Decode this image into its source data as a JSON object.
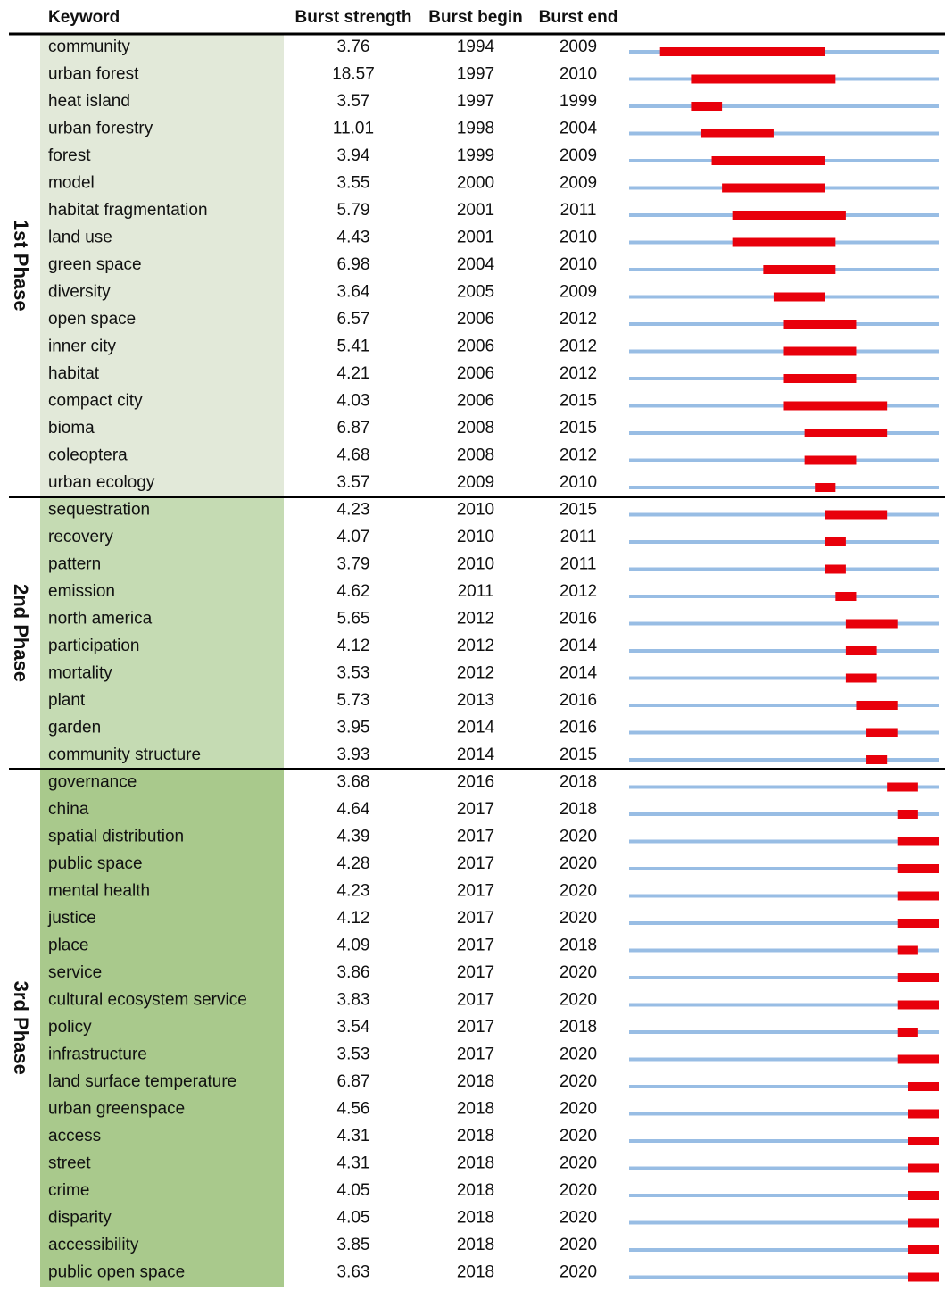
{
  "header": [
    "Keyword",
    "Burst strength",
    "Burst begin",
    "Burst end"
  ],
  "xlim": [
    1991,
    2020
  ],
  "phases": [
    {
      "name": "1st Phase",
      "color": "#e2e9d9",
      "rows": [
        [
          "community",
          3.76,
          1994,
          2009
        ],
        [
          "urban forest",
          18.57,
          1997,
          2010
        ],
        [
          "heat island",
          3.57,
          1997,
          1999
        ],
        [
          "urban forestry",
          11.01,
          1998,
          2004
        ],
        [
          "forest",
          3.94,
          1999,
          2009
        ],
        [
          "model",
          3.55,
          2000,
          2009
        ],
        [
          "habitat fragmentation",
          5.79,
          2001,
          2011
        ],
        [
          "land use",
          4.43,
          2001,
          2010
        ],
        [
          "green space",
          6.98,
          2004,
          2010
        ],
        [
          "diversity",
          3.64,
          2005,
          2009
        ],
        [
          "open space",
          6.57,
          2006,
          2012
        ],
        [
          "inner city",
          5.41,
          2006,
          2012
        ],
        [
          "habitat",
          4.21,
          2006,
          2012
        ],
        [
          "compact city",
          4.03,
          2006,
          2015
        ],
        [
          "bioma",
          6.87,
          2008,
          2015
        ],
        [
          "coleoptera",
          4.68,
          2008,
          2012
        ],
        [
          "urban ecology",
          3.57,
          2009,
          2010
        ]
      ]
    },
    {
      "name": "2nd Phase",
      "color": "#c5dbb3",
      "rows": [
        [
          "sequestration",
          4.23,
          2010,
          2015
        ],
        [
          "recovery",
          4.07,
          2010,
          2011
        ],
        [
          "pattern",
          3.79,
          2010,
          2011
        ],
        [
          "emission",
          4.62,
          2011,
          2012
        ],
        [
          "north america",
          5.65,
          2012,
          2016
        ],
        [
          "participation",
          4.12,
          2012,
          2014
        ],
        [
          "mortality",
          3.53,
          2012,
          2014
        ],
        [
          "plant",
          5.73,
          2013,
          2016
        ],
        [
          "garden",
          3.95,
          2014,
          2016
        ],
        [
          "community structure",
          3.93,
          2014,
          2015
        ]
      ]
    },
    {
      "name": "3rd Phase",
      "color": "#a9c98c",
      "rows": [
        [
          "governance",
          3.68,
          2016,
          2018
        ],
        [
          "china",
          4.64,
          2017,
          2018
        ],
        [
          "spatial distribution",
          4.39,
          2017,
          2020
        ],
        [
          "public space",
          4.28,
          2017,
          2020
        ],
        [
          "mental health",
          4.23,
          2017,
          2020
        ],
        [
          "justice",
          4.12,
          2017,
          2020
        ],
        [
          "place",
          4.09,
          2017,
          2018
        ],
        [
          "service",
          3.86,
          2017,
          2020
        ],
        [
          "cultural ecosystem service",
          3.83,
          2017,
          2020
        ],
        [
          "policy",
          3.54,
          2017,
          2018
        ],
        [
          "infrastructure",
          3.53,
          2017,
          2020
        ],
        [
          "land surface temperature",
          6.87,
          2018,
          2020
        ],
        [
          "urban greenspace",
          4.56,
          2018,
          2020
        ],
        [
          "access",
          4.31,
          2018,
          2020
        ],
        [
          "street",
          4.31,
          2018,
          2020
        ],
        [
          "crime",
          4.05,
          2018,
          2020
        ],
        [
          "disparity",
          4.05,
          2018,
          2020
        ],
        [
          "accessibility",
          3.85,
          2018,
          2020
        ],
        [
          "public open space",
          3.63,
          2018,
          2020
        ]
      ]
    }
  ]
}
